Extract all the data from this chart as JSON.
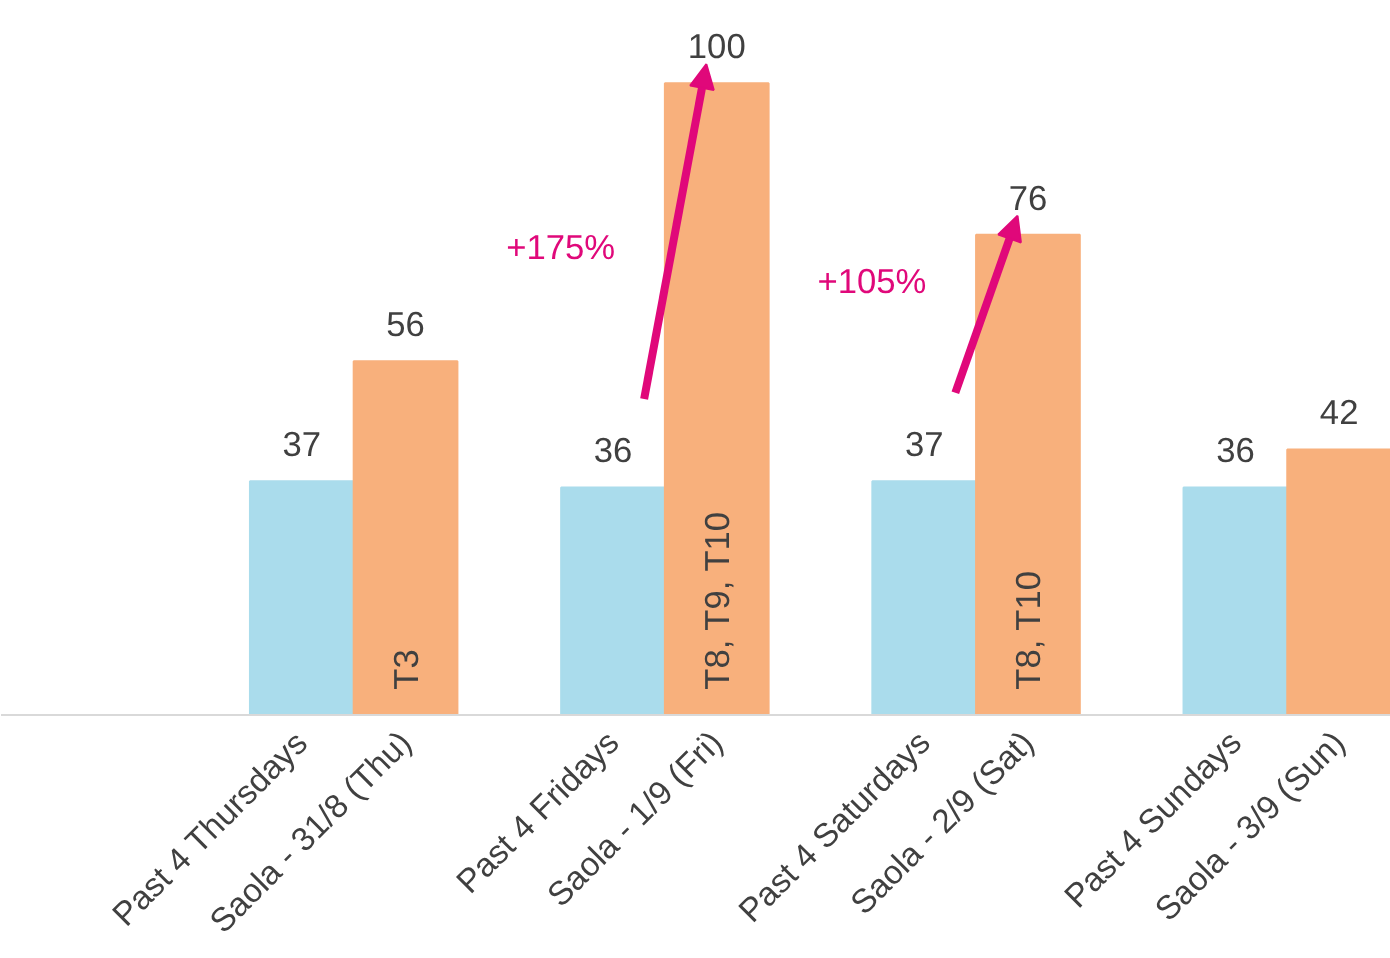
{
  "chart_data": {
    "type": "bar",
    "categories": [
      "Past 4 Thursdays",
      "Saola - 31/8 (Thu)",
      "Past 4 Fridays",
      "Saola - 1/9 (Fri)",
      "Past 4 Saturdays",
      "Saola - 2/9 (Sat)",
      "Past 4 Sundays",
      "Saola - 3/9 (Sun)"
    ],
    "values": [
      37,
      56,
      36,
      100,
      37,
      76,
      36,
      42
    ],
    "colors": [
      "#aadcec",
      "#f8b07c",
      "#aadcec",
      "#f8b07c",
      "#aadcec",
      "#f8b07c",
      "#aadcec",
      "#f8b07c"
    ],
    "data_labels": true,
    "annotations": [
      "T3",
      "T8, T9, T10",
      "T8, T10",
      "+175%",
      "+105%"
    ]
  }
}
